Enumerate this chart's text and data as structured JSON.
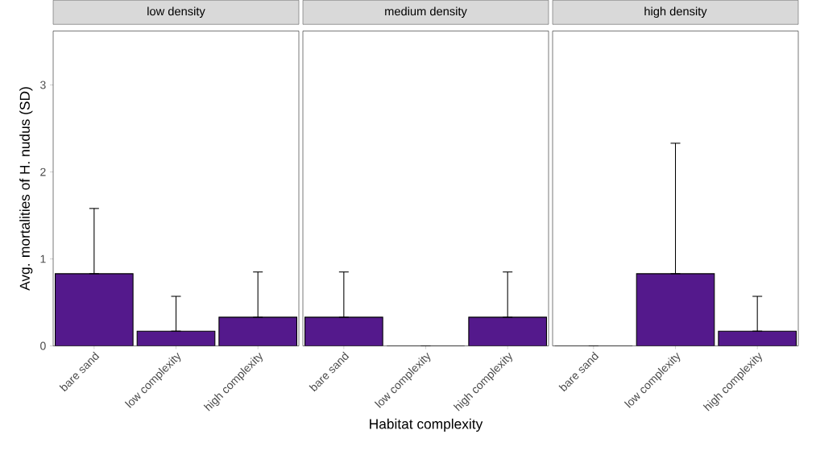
{
  "chart_data": [
    {
      "type": "bar",
      "title": "low density",
      "ylabel": "Avg. mortalities of H. nudus (SD)",
      "categories": [
        "bare sand",
        "low complexity",
        "high complexity"
      ],
      "values": [
        0.83,
        0.17,
        0.33
      ],
      "errors": [
        [
          0.83,
          1.58
        ],
        [
          0.17,
          0.57
        ],
        [
          0.33,
          0.85
        ]
      ],
      "color": "#54198c",
      "ylim": [
        0,
        3.62
      ],
      "yticks": [
        0,
        1,
        2,
        3
      ]
    },
    {
      "type": "bar",
      "title": "medium density",
      "xlabel": "Habitat complexity",
      "categories": [
        "bare sand",
        "low complexity",
        "high complexity"
      ],
      "values": [
        0.33,
        0,
        0.33
      ],
      "errors": [
        [
          0.33,
          0.85
        ],
        null,
        [
          0.33,
          0.85
        ]
      ],
      "color": "#54198c",
      "ylim": [
        0,
        3.62
      ],
      "yticks": [
        0,
        1,
        2,
        3
      ],
      "tick_labels": "x"
    },
    {
      "type": "bar",
      "title": "high density",
      "categories": [
        "bare sand",
        "low complexity",
        "high complexity"
      ],
      "values": [
        0,
        0.83,
        0.17
      ],
      "errors": [
        null,
        [
          0.83,
          2.33
        ],
        [
          0.17,
          0.57
        ]
      ],
      "color": "#54198c",
      "ylim": [
        0,
        3.62
      ],
      "yticks": [
        0,
        1,
        2,
        3
      ],
      "tick_labels": "x"
    }
  ]
}
